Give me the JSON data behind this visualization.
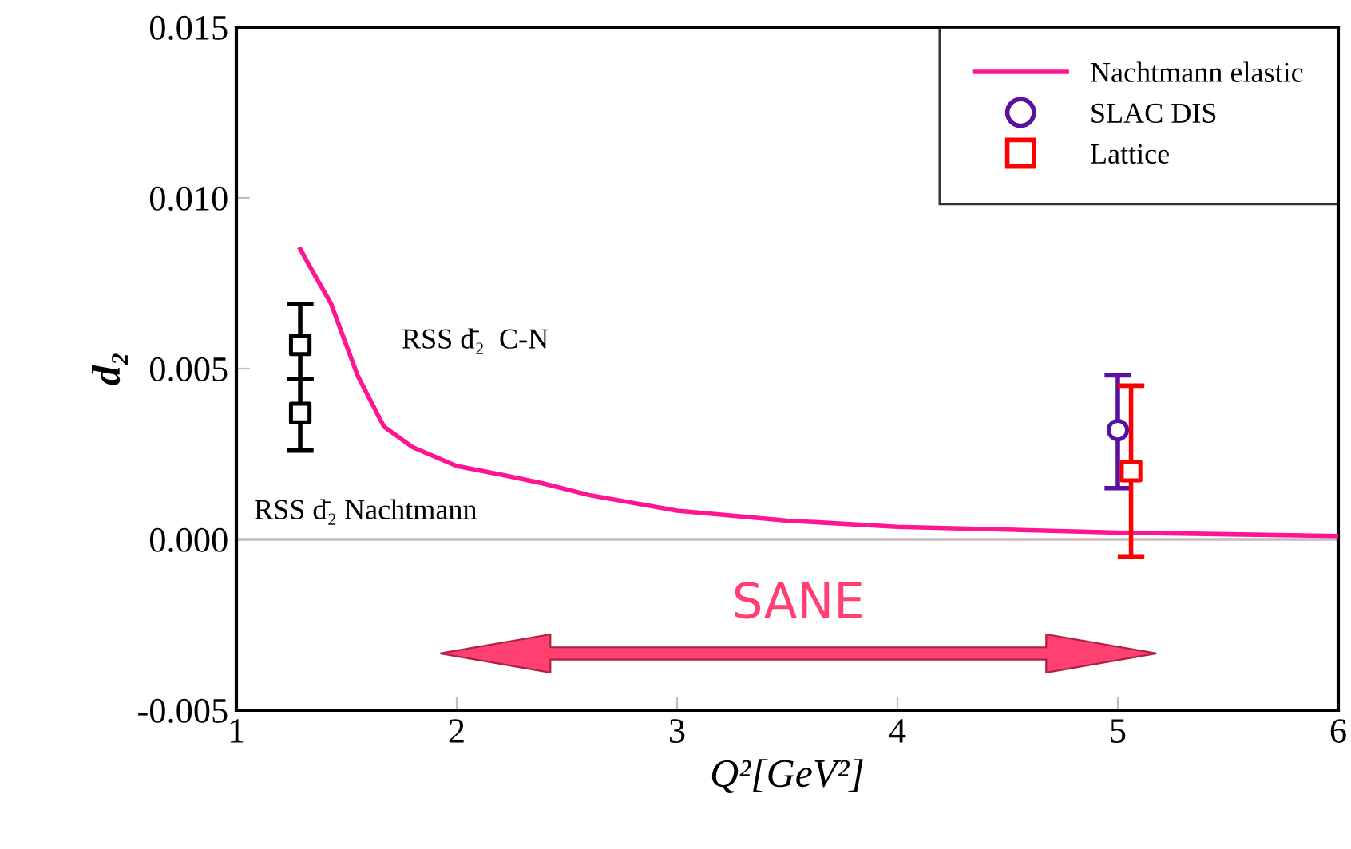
{
  "chart_data": {
    "type": "scatter",
    "xlabel": "Q²[GeV²]",
    "ylabel": "d₂",
    "xlim": [
      1,
      6
    ],
    "xticks": [
      1,
      2,
      3,
      4,
      5,
      6
    ],
    "ylim": [
      -0.005,
      0.015
    ],
    "yticks": [
      {
        "value": -0.005,
        "label": "-0.005"
      },
      {
        "value": 0.0,
        "label": "0.000"
      },
      {
        "value": 0.005,
        "label": "0.005"
      },
      {
        "value": 0.01,
        "label": "0.010"
      },
      {
        "value": 0.015,
        "label": "0.015"
      }
    ],
    "grid": false,
    "legend": "top right",
    "series": [
      {
        "name": "Nachtmann elastic",
        "type": "line",
        "color": "#ff1493",
        "marker": "none",
        "line_style": "solid",
        "x": [
          1.29,
          1.35,
          1.43,
          1.55,
          1.67,
          1.8,
          2.0,
          2.2,
          2.39,
          2.6,
          3.0,
          3.5,
          4.0,
          5.0,
          6.0
        ],
        "values": [
          0.0085,
          0.0078,
          0.0069,
          0.0048,
          0.0033,
          0.0027,
          0.00215,
          0.0019,
          0.00164,
          0.0013,
          0.00084,
          0.00055,
          0.00037,
          0.0002,
          0.0001
        ]
      },
      {
        "name": "SLAC DIS",
        "color": "#5a10a0",
        "marker": "circle",
        "x": [
          5.0
        ],
        "values": [
          0.0032
        ],
        "errors": [
          [
            0.0015,
            0.0048
          ]
        ]
      },
      {
        "name": "Lattice",
        "color": "#ff0000",
        "marker": "square",
        "x": [
          5.06
        ],
        "values": [
          0.002
        ],
        "errors": [
          [
            -0.0005,
            0.0045
          ]
        ]
      },
      {
        "color": "#000000",
        "marker": "square",
        "x": [
          1.29
        ],
        "values": [
          0.0057
        ],
        "errors": [
          [
            0.0047,
            0.0069
          ]
        ]
      },
      {
        "color": "#000000",
        "marker": "square",
        "x": [
          1.29
        ],
        "values": [
          0.0037
        ],
        "errors": [
          [
            0.0026,
            0.0047
          ]
        ]
      }
    ],
    "ref_lines": [
      {
        "axis": "y",
        "value": 0.0,
        "color": "#c8b8c0"
      }
    ],
    "annotations": [
      "SANE",
      "RSS d̄₂  C-N",
      "RSS d̄₂ Nachtmann"
    ]
  }
}
